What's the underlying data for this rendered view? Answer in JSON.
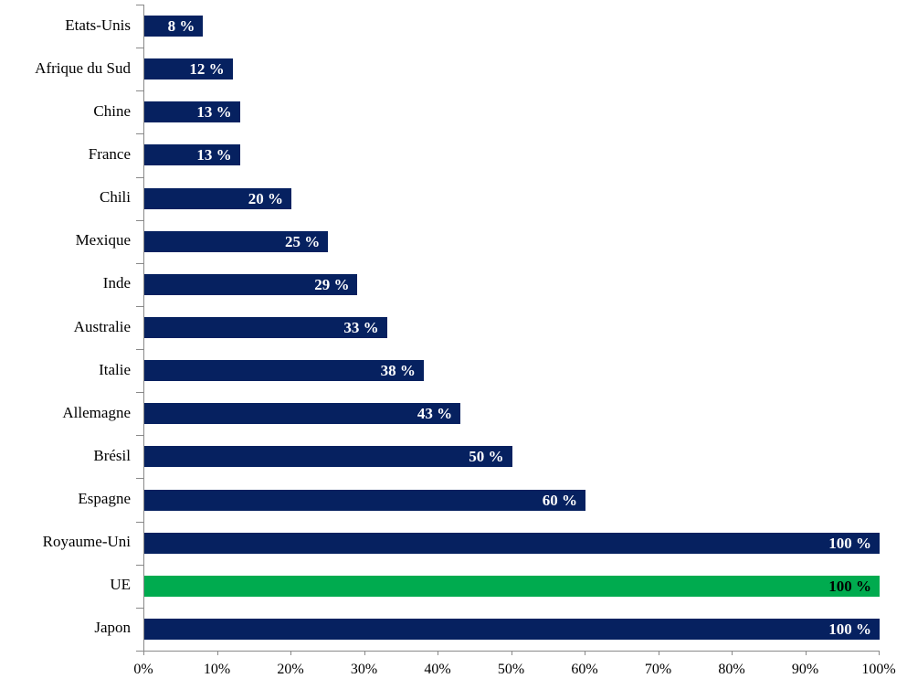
{
  "chart_data": {
    "type": "bar",
    "orientation": "horizontal",
    "title": "",
    "xlabel": "",
    "ylabel": "",
    "categories": [
      "Etats-Unis",
      "Afrique du Sud",
      "Chine",
      "France",
      "Chili",
      "Mexique",
      "Inde",
      "Australie",
      "Italie",
      "Allemagne",
      "Brésil",
      "Espagne",
      "Royaume-Uni",
      "UE",
      "Japon"
    ],
    "values": [
      8,
      12,
      13,
      13,
      20,
      25,
      29,
      33,
      38,
      43,
      50,
      60,
      100,
      100,
      100
    ],
    "value_labels": [
      "8 %",
      "12 %",
      "13 %",
      "13 %",
      "20 %",
      "25 %",
      "29 %",
      "33 %",
      "38 %",
      "43 %",
      "50 %",
      "60 %",
      "100 %",
      "100 %",
      "100 %"
    ],
    "highlight_category": "UE",
    "bar_color": "#062160",
    "highlight_bar_color": "#00AB4F",
    "value_label_color": "#FFFFFF",
    "highlight_value_label_color": "#000000",
    "axis_color": "#898989",
    "text_color": "#000000",
    "xlim": [
      0,
      100
    ],
    "x_ticks": [
      "0%",
      "10%",
      "20%",
      "30%",
      "40%",
      "50%",
      "60%",
      "70%",
      "80%",
      "90%",
      "100%"
    ],
    "grid": false,
    "legend": "none"
  }
}
